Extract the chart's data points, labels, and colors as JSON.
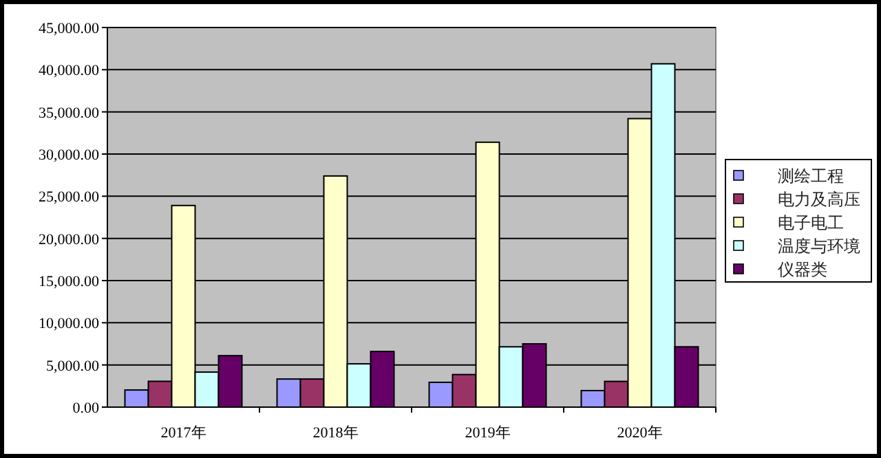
{
  "chart_data": {
    "type": "bar",
    "categories": [
      "2017年",
      "2018年",
      "2019年",
      "2020年"
    ],
    "series": [
      {
        "name": "测绘工程",
        "color": "#9999ff",
        "values": [
          2030,
          3330,
          2940,
          1960
        ]
      },
      {
        "name": "电力及高压",
        "color": "#993366",
        "values": [
          3060,
          3330,
          3860,
          3050
        ]
      },
      {
        "name": "电子电工",
        "color": "#ffffcc",
        "values": [
          23900,
          27400,
          31400,
          34200
        ]
      },
      {
        "name": "温度与环境",
        "color": "#ccffff",
        "values": [
          4150,
          5130,
          7150,
          40700
        ]
      },
      {
        "name": "仪器类",
        "color": "#660066",
        "values": [
          6100,
          6600,
          7500,
          7150
        ]
      }
    ],
    "ylim": [
      0,
      45000
    ],
    "yticks": [
      {
        "value": 0,
        "label": "0.00"
      },
      {
        "value": 5000,
        "label": "5,000.00"
      },
      {
        "value": 10000,
        "label": "10,000.00"
      },
      {
        "value": 15000,
        "label": "15,000.00"
      },
      {
        "value": 20000,
        "label": "20,000.00"
      },
      {
        "value": 25000,
        "label": "25,000.00"
      },
      {
        "value": 30000,
        "label": "30,000.00"
      },
      {
        "value": 35000,
        "label": "35,000.00"
      },
      {
        "value": 40000,
        "label": "40,000.00"
      },
      {
        "value": 45000,
        "label": "45,000.00"
      }
    ],
    "grid": "y",
    "legend": "right"
  }
}
